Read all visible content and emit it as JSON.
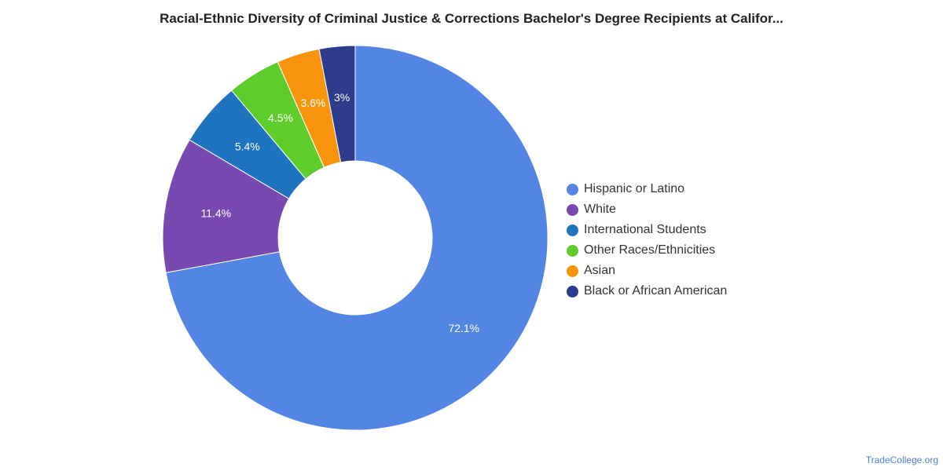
{
  "chart_data": {
    "type": "pie",
    "title": "Racial-Ethnic Diversity of Criminal Justice & Corrections Bachelor's Degree Recipients at Califor...",
    "categories": [
      "Hispanic or Latino",
      "White",
      "International Students",
      "Other Races/Ethnicities",
      "Asian",
      "Black or African American"
    ],
    "values": [
      72.1,
      11.4,
      5.4,
      4.5,
      3.6,
      3.0
    ],
    "labels": [
      "72.1%",
      "11.4%",
      "5.4%",
      "4.5%",
      "3.6%",
      "3%"
    ],
    "colors": [
      "#5386e4",
      "#7849b0",
      "#1f74bf",
      "#5ecc2a",
      "#f7940c",
      "#2c3b8c"
    ],
    "donut": true,
    "legend_position": "right"
  },
  "source": "TradeCollege.org"
}
